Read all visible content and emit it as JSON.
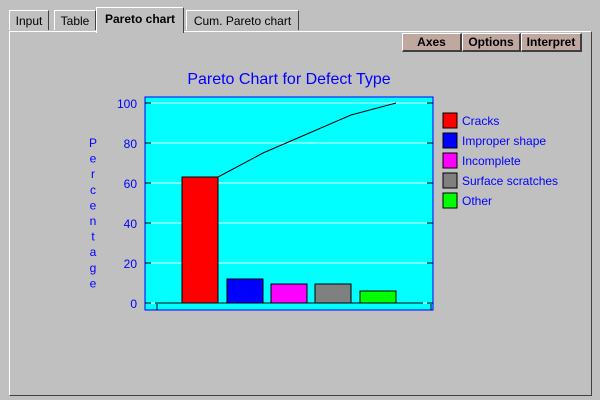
{
  "tabs": [
    {
      "label": "Input",
      "active": false
    },
    {
      "label": "Table",
      "active": false
    },
    {
      "label": "Pareto chart",
      "active": true
    },
    {
      "label": "Cum. Pareto chart",
      "active": false
    }
  ],
  "toolbar": {
    "axes": "Axes",
    "options": "Options",
    "interpret": "Interpret"
  },
  "colors": {
    "plot_bg": "#00ffff",
    "text": "#0000ff",
    "window_bg": "#c0c0c0",
    "button_bg": "#c0a8a0"
  },
  "chart_data": {
    "type": "bar",
    "title": "Pareto Chart for Defect Type",
    "ylabel": "Percentage",
    "xlabel": "",
    "ylim": [
      0,
      100
    ],
    "yticks": [
      0,
      20,
      40,
      60,
      80,
      100
    ],
    "grid": true,
    "legend_position": "right",
    "categories": [
      "Cracks",
      "Improper shape",
      "Incomplete",
      "Surface scratches",
      "Other"
    ],
    "values": [
      63,
      12,
      9.5,
      9.5,
      6
    ],
    "bar_colors": [
      "#ff0000",
      "#0000ff",
      "#ff00ff",
      "#808080",
      "#00ff00"
    ],
    "cumulative": [
      63,
      75,
      84.5,
      94,
      100
    ]
  }
}
